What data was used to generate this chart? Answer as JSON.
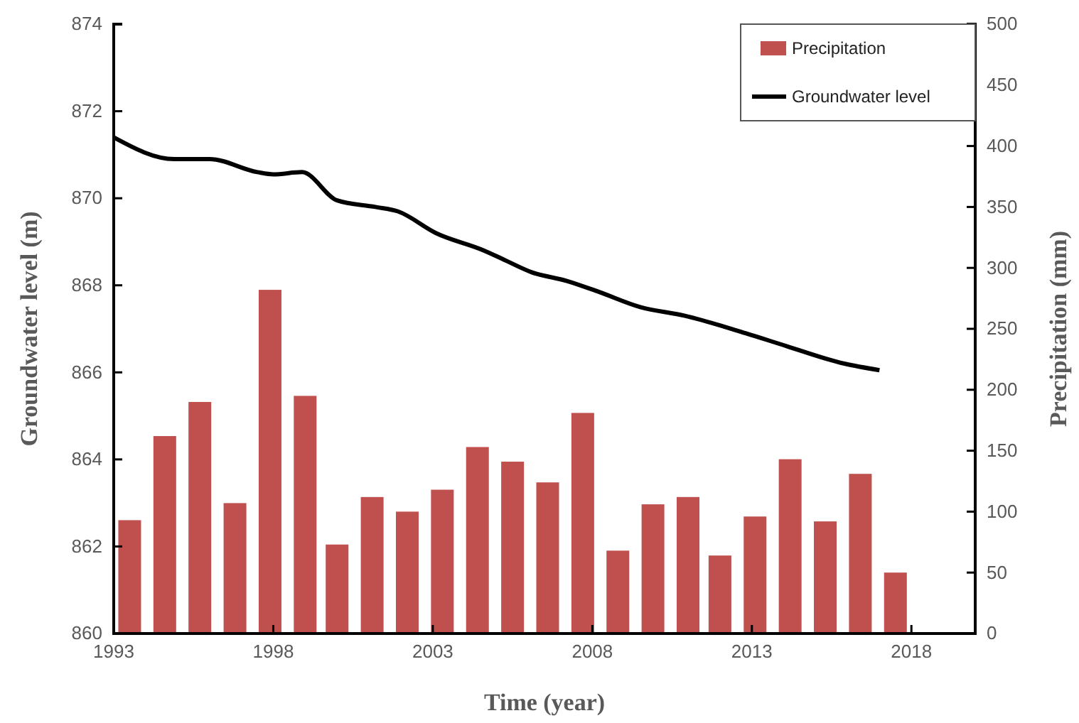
{
  "chart_data": {
    "type": "bar",
    "xlabel": "Time (year)",
    "ylabel": "Groundwater level (m)",
    "y2label": "Precipitation (mm)",
    "xlim": [
      1993,
      2020
    ],
    "xticks": [
      1993,
      1998,
      2003,
      2008,
      2013,
      2018
    ],
    "ylim": [
      860,
      874
    ],
    "yticks": [
      860,
      862,
      864,
      866,
      868,
      870,
      872,
      874
    ],
    "y2lim": [
      0,
      500
    ],
    "y2ticks": [
      0,
      50,
      100,
      150,
      200,
      250,
      300,
      350,
      400,
      450,
      500
    ],
    "legend": "top right",
    "grid": false,
    "series": [
      {
        "name": "Precipitation",
        "axis": "y2",
        "color": "#c0504d",
        "x": [
          1993.5,
          1994.6,
          1995.7,
          1996.8,
          1997.9,
          1999.0,
          2000.0,
          2001.1,
          2002.2,
          2003.3,
          2004.4,
          2005.5,
          2006.6,
          2007.7,
          2008.8,
          2009.9,
          2011.0,
          2012.0,
          2013.1,
          2014.2,
          2015.3,
          2016.4,
          2017.5
        ],
        "values": [
          93,
          162,
          190,
          107,
          282,
          195,
          73,
          112,
          100,
          118,
          153,
          141,
          124,
          181,
          68,
          106,
          112,
          64,
          96,
          143,
          92,
          131,
          50
        ]
      },
      {
        "name": "Groundwater level",
        "type": "line",
        "axis": "y",
        "color": "#000000",
        "x": [
          1993,
          1994.9,
          1996.0,
          1997.5,
          1998.0,
          1998.9,
          2000.0,
          2001.2,
          2001.9,
          2003.1,
          2004.6,
          2005.2,
          2006.1,
          2007.2,
          2008.2,
          2009.5,
          2010.9,
          2012.8,
          2014.1,
          2015.9,
          2017.0
        ],
        "values": [
          871.4,
          870.9,
          870.9,
          870.6,
          870.55,
          870.6,
          869.95,
          869.8,
          869.7,
          869.2,
          868.8,
          868.6,
          868.3,
          868.1,
          867.85,
          867.5,
          867.3,
          866.9,
          866.6,
          866.2,
          866.05
        ]
      }
    ]
  }
}
